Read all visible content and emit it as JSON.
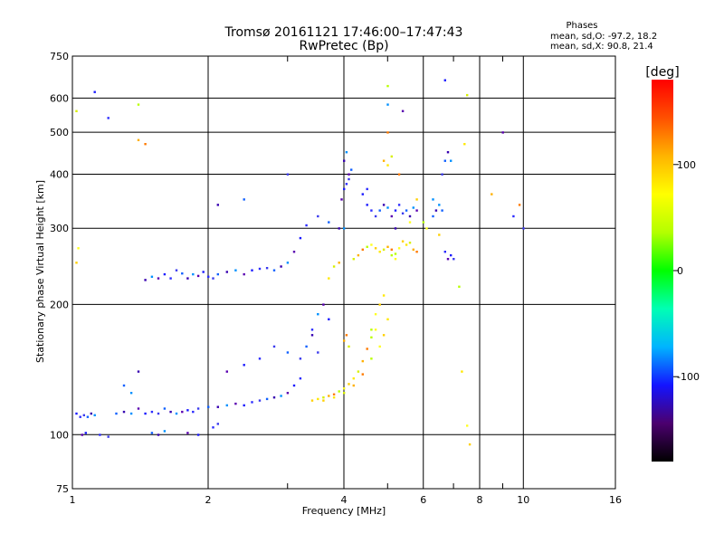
{
  "chart_data": {
    "type": "scatter",
    "title": "Tromsø 20161121 17:46:00–17:47:43",
    "subtitle": "RwPretec (Bp)",
    "xlabel": "Frequency [MHz]",
    "ylabel": "Stationary phase Virtual Height [km]",
    "x_scale": "log",
    "y_scale": "log",
    "xlim": [
      1,
      16
    ],
    "ylim": [
      75,
      750
    ],
    "x_ticks": [
      1,
      2,
      4,
      6,
      8,
      10,
      16
    ],
    "x_minor_ticks": [
      3,
      5,
      7,
      9
    ],
    "y_ticks": [
      75,
      100,
      200,
      300,
      400,
      500,
      600,
      750
    ],
    "grid": true,
    "legend": {
      "header": "Phases",
      "lines": [
        "mean, sd,O: -97.2, 18.2",
        "mean, sd,X:  90.8, 21.4"
      ]
    },
    "colorbar": {
      "unit": "[deg]",
      "range": [
        -180,
        180
      ],
      "ticks": [
        100,
        0,
        -100
      ],
      "colors": [
        "#000000",
        "#4b006e",
        "#1414ff",
        "#00b4ff",
        "#00ffb4",
        "#00ff00",
        "#b4ff00",
        "#ffff00",
        "#ffb400",
        "#ff5000",
        "#ff0000"
      ]
    },
    "series": [
      {
        "points": [
          [
            1.02,
            112
          ],
          [
            1.04,
            110
          ],
          [
            1.06,
            111
          ],
          [
            1.08,
            110
          ],
          [
            1.1,
            112
          ],
          [
            1.12,
            111
          ],
          [
            1.05,
            100
          ],
          [
            1.07,
            101
          ],
          [
            1.15,
            100
          ],
          [
            1.2,
            99
          ],
          [
            1.25,
            112
          ],
          [
            1.3,
            113
          ],
          [
            1.35,
            112
          ],
          [
            1.4,
            115
          ],
          [
            1.45,
            112
          ],
          [
            1.5,
            113
          ],
          [
            1.55,
            112
          ],
          [
            1.6,
            115
          ],
          [
            1.65,
            113
          ],
          [
            1.7,
            112
          ],
          [
            1.75,
            113
          ],
          [
            1.8,
            114
          ],
          [
            1.85,
            113
          ],
          [
            1.9,
            115
          ],
          [
            2.0,
            116
          ],
          [
            2.1,
            116
          ],
          [
            2.2,
            117
          ],
          [
            2.3,
            118
          ],
          [
            2.4,
            117
          ],
          [
            2.5,
            119
          ],
          [
            2.6,
            120
          ],
          [
            2.7,
            121
          ],
          [
            2.8,
            122
          ],
          [
            2.9,
            123
          ],
          [
            3.0,
            125
          ],
          [
            3.1,
            130
          ],
          [
            3.2,
            135
          ],
          [
            3.2,
            150
          ],
          [
            3.3,
            160
          ],
          [
            3.4,
            170
          ],
          [
            3.5,
            190
          ],
          [
            3.6,
            200
          ],
          [
            3.7,
            185
          ],
          [
            3.4,
            175
          ],
          [
            3.5,
            155
          ],
          [
            1.5,
            101
          ],
          [
            1.55,
            100
          ],
          [
            1.6,
            102
          ],
          [
            1.8,
            101
          ],
          [
            1.9,
            100
          ],
          [
            2.05,
            104
          ],
          [
            2.1,
            106
          ],
          [
            1.3,
            130
          ],
          [
            1.4,
            140
          ],
          [
            1.35,
            125
          ],
          [
            2.2,
            140
          ],
          [
            2.4,
            145
          ],
          [
            2.6,
            150
          ],
          [
            2.8,
            160
          ],
          [
            3.0,
            155
          ],
          [
            1.45,
            228
          ],
          [
            1.5,
            232
          ],
          [
            1.55,
            230
          ],
          [
            1.6,
            235
          ],
          [
            1.65,
            230
          ],
          [
            1.7,
            240
          ],
          [
            1.75,
            236
          ],
          [
            1.8,
            230
          ],
          [
            1.85,
            235
          ],
          [
            1.9,
            233
          ],
          [
            1.95,
            238
          ],
          [
            2.0,
            232
          ],
          [
            2.05,
            230
          ],
          [
            2.1,
            235
          ],
          [
            2.2,
            238
          ],
          [
            2.3,
            240
          ],
          [
            2.4,
            235
          ],
          [
            2.5,
            240
          ],
          [
            2.6,
            242
          ],
          [
            2.7,
            243
          ],
          [
            2.8,
            240
          ],
          [
            2.9,
            245
          ],
          [
            3.0,
            250
          ],
          [
            3.1,
            265
          ],
          [
            3.2,
            285
          ],
          [
            3.3,
            305
          ],
          [
            3.5,
            320
          ],
          [
            3.7,
            310
          ],
          [
            3.9,
            300
          ],
          [
            4.0,
            300
          ],
          [
            3.95,
            350
          ],
          [
            4.0,
            370
          ],
          [
            4.05,
            380
          ],
          [
            4.1,
            390
          ],
          [
            4.15,
            410
          ],
          [
            4.0,
            430
          ],
          [
            4.05,
            450
          ],
          [
            4.1,
            400
          ],
          [
            4.5,
            340
          ],
          [
            4.6,
            330
          ],
          [
            4.7,
            320
          ],
          [
            4.8,
            330
          ],
          [
            4.9,
            340
          ],
          [
            5.0,
            335
          ],
          [
            5.1,
            320
          ],
          [
            5.2,
            330
          ],
          [
            5.3,
            340
          ],
          [
            5.4,
            325
          ],
          [
            5.5,
            330
          ],
          [
            5.6,
            320
          ],
          [
            5.7,
            335
          ],
          [
            5.8,
            330
          ],
          [
            4.4,
            360
          ],
          [
            4.5,
            370
          ],
          [
            6.6,
            400
          ],
          [
            6.7,
            430
          ],
          [
            6.8,
            450
          ],
          [
            6.9,
            430
          ],
          [
            6.8,
            255
          ],
          [
            6.9,
            260
          ],
          [
            6.7,
            265
          ],
          [
            7.0,
            255
          ],
          [
            6.3,
            320
          ],
          [
            6.4,
            330
          ],
          [
            6.5,
            340
          ],
          [
            9.0,
            500
          ],
          [
            1.12,
            620
          ],
          [
            1.2,
            540
          ],
          [
            3.0,
            400
          ],
          [
            2.4,
            350
          ],
          [
            2.1,
            340
          ],
          [
            5.0,
            580
          ],
          [
            5.4,
            560
          ],
          [
            6.7,
            660
          ],
          [
            9.5,
            320
          ],
          [
            10.0,
            300
          ],
          [
            6.6,
            330
          ],
          [
            5.2,
            300
          ],
          [
            6.3,
            350
          ]
        ]
      },
      {
        "points": [
          [
            3.4,
            120
          ],
          [
            3.5,
            121
          ],
          [
            3.6,
            122
          ],
          [
            3.7,
            123
          ],
          [
            3.8,
            124
          ],
          [
            3.9,
            126
          ],
          [
            4.0,
            128
          ],
          [
            4.1,
            131
          ],
          [
            4.2,
            135
          ],
          [
            4.3,
            140
          ],
          [
            4.4,
            148
          ],
          [
            4.5,
            158
          ],
          [
            4.6,
            168
          ],
          [
            4.7,
            175
          ],
          [
            3.6,
            120
          ],
          [
            3.8,
            122
          ],
          [
            4.0,
            125
          ],
          [
            4.2,
            130
          ],
          [
            4.4,
            138
          ],
          [
            4.6,
            150
          ],
          [
            4.8,
            160
          ],
          [
            4.9,
            170
          ],
          [
            5.0,
            185
          ],
          [
            4.1,
            160
          ],
          [
            4.0,
            165
          ],
          [
            4.05,
            170
          ],
          [
            4.6,
            175
          ],
          [
            4.7,
            190
          ],
          [
            4.8,
            200
          ],
          [
            4.9,
            210
          ],
          [
            4.2,
            255
          ],
          [
            4.3,
            260
          ],
          [
            4.4,
            268
          ],
          [
            4.5,
            272
          ],
          [
            4.6,
            275
          ],
          [
            4.7,
            270
          ],
          [
            4.8,
            265
          ],
          [
            4.9,
            268
          ],
          [
            5.0,
            272
          ],
          [
            5.1,
            268
          ],
          [
            5.2,
            262
          ],
          [
            5.3,
            270
          ],
          [
            5.4,
            280
          ],
          [
            5.5,
            275
          ],
          [
            5.6,
            278
          ],
          [
            5.7,
            268
          ],
          [
            5.8,
            265
          ],
          [
            5.1,
            260
          ],
          [
            5.2,
            255
          ],
          [
            5.8,
            350
          ],
          [
            5.0,
            420
          ],
          [
            5.1,
            440
          ],
          [
            4.9,
            430
          ],
          [
            5.3,
            400
          ],
          [
            6.0,
            310
          ],
          [
            6.1,
            300
          ],
          [
            6.5,
            290
          ],
          [
            7.4,
            470
          ],
          [
            7.5,
            610
          ],
          [
            8.5,
            360
          ],
          [
            9.8,
            340
          ],
          [
            7.2,
            220
          ],
          [
            7.5,
            105
          ],
          [
            7.6,
            95
          ],
          [
            7.3,
            140
          ],
          [
            1.02,
            560
          ],
          [
            1.4,
            480
          ],
          [
            1.45,
            470
          ],
          [
            1.4,
            580
          ],
          [
            1.03,
            270
          ],
          [
            1.02,
            250
          ],
          [
            3.7,
            230
          ],
          [
            3.8,
            245
          ],
          [
            3.9,
            250
          ],
          [
            5.0,
            500
          ],
          [
            5.0,
            640
          ],
          [
            5.6,
            310
          ]
        ]
      }
    ]
  }
}
